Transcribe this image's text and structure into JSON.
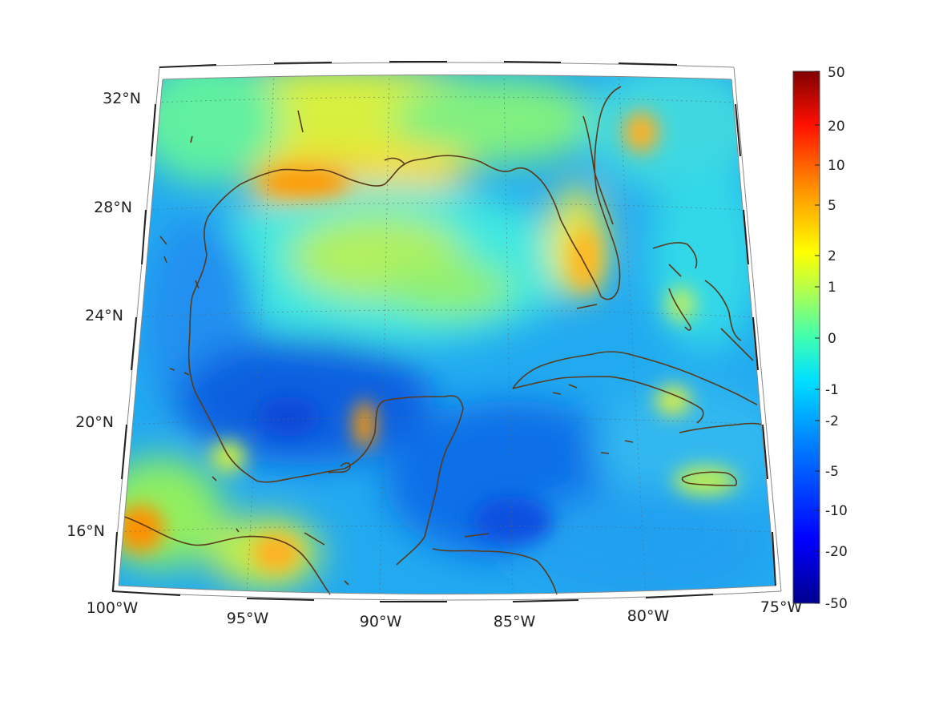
{
  "map": {
    "projection": "conic",
    "lon_ticks": [
      "100°W",
      "95°W",
      "90°W",
      "85°W",
      "80°W",
      "75°W"
    ],
    "lat_ticks": [
      "32°N",
      "28°N",
      "24°N",
      "20°N",
      "16°N"
    ],
    "extent": {
      "lon": [
        -100,
        -75
      ],
      "lat": [
        14,
        33
      ]
    },
    "grid": true,
    "coastline_color": "#5a3a1a"
  },
  "colorbar": {
    "ticks": [
      "50",
      "20",
      "10",
      "5",
      "2",
      "1",
      "0",
      "-1",
      "-2",
      "-5",
      "-10",
      "-20",
      "-50"
    ],
    "colormap": "jet",
    "stops": [
      "#00008f",
      "#0000ff",
      "#0080ff",
      "#00ffff",
      "#80ff80",
      "#ffff00",
      "#ff8000",
      "#ff0000",
      "#800000"
    ]
  }
}
